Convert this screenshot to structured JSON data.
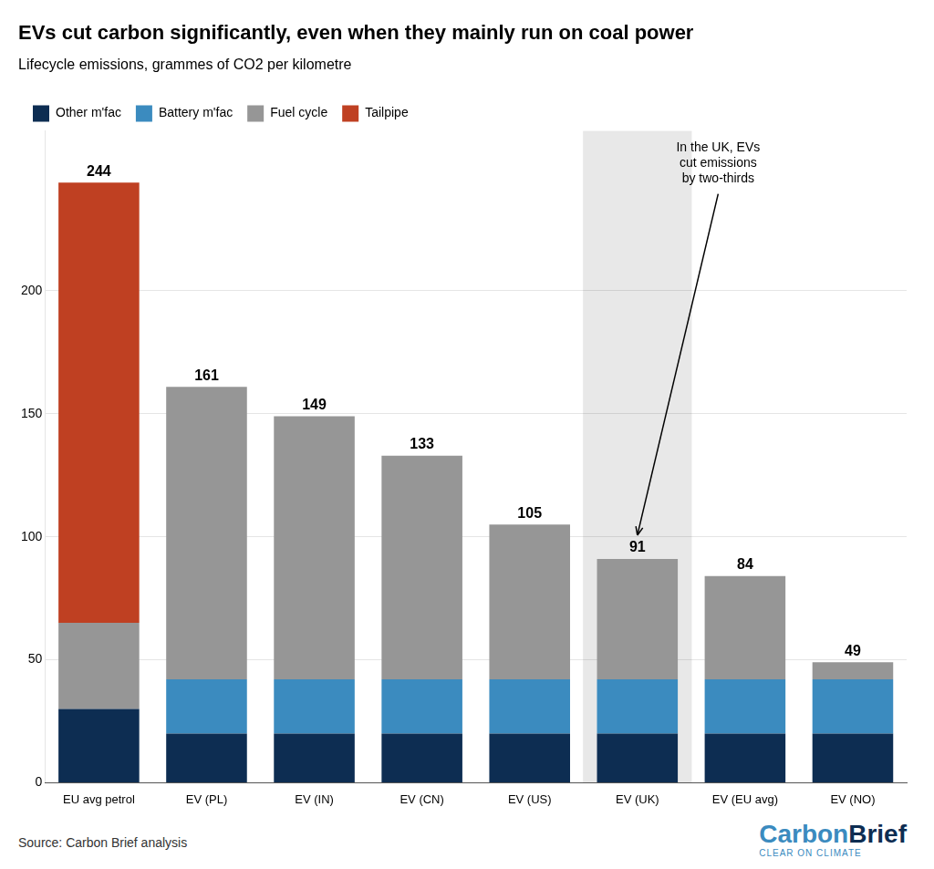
{
  "chart_data": {
    "type": "bar",
    "stacked": true,
    "title": "EVs cut carbon significantly, even when they mainly run on coal power",
    "subtitle": "Lifecycle emissions, grammes of CO2 per kilometre",
    "categories": [
      "EU avg petrol",
      "EV (PL)",
      "EV (IN)",
      "EV (CN)",
      "EV (US)",
      "EV (UK)",
      "EV (EU avg)",
      "EV (NO)"
    ],
    "series": [
      {
        "name": "Other m'fac",
        "color": "#0d2d52",
        "values": [
          30,
          20,
          20,
          20,
          20,
          20,
          20,
          20
        ]
      },
      {
        "name": "Battery m'fac",
        "color": "#3b8bbf",
        "values": [
          0,
          22,
          22,
          22,
          22,
          22,
          22,
          22
        ]
      },
      {
        "name": "Fuel cycle",
        "color": "#969696",
        "values": [
          35,
          119,
          107,
          91,
          63,
          49,
          42,
          7
        ]
      },
      {
        "name": "Tailpipe",
        "color": "#bf4022",
        "values": [
          179,
          0,
          0,
          0,
          0,
          0,
          0,
          0
        ]
      }
    ],
    "totals": [
      244,
      161,
      149,
      133,
      105,
      91,
      84,
      49
    ],
    "ylim": [
      0,
      265
    ],
    "yticks": [
      0,
      50,
      100,
      150,
      200
    ],
    "grid": true,
    "legend": "top-left",
    "highlight": {
      "category": "EV (UK)",
      "color": "#e8e8e8"
    },
    "annotations": [
      {
        "text": "In the UK, EVs\ncut emissions\nby two-thirds",
        "category": "EV (UK)"
      }
    ],
    "source": "Source: Carbon Brief analysis",
    "logo": {
      "text": [
        "Carbon",
        "Brief"
      ],
      "colors": [
        "#3b8bbf",
        "#0d2d52"
      ],
      "tagline": "CLEAR ON CLIMATE",
      "tagline_color": "#3b8bbf"
    }
  }
}
